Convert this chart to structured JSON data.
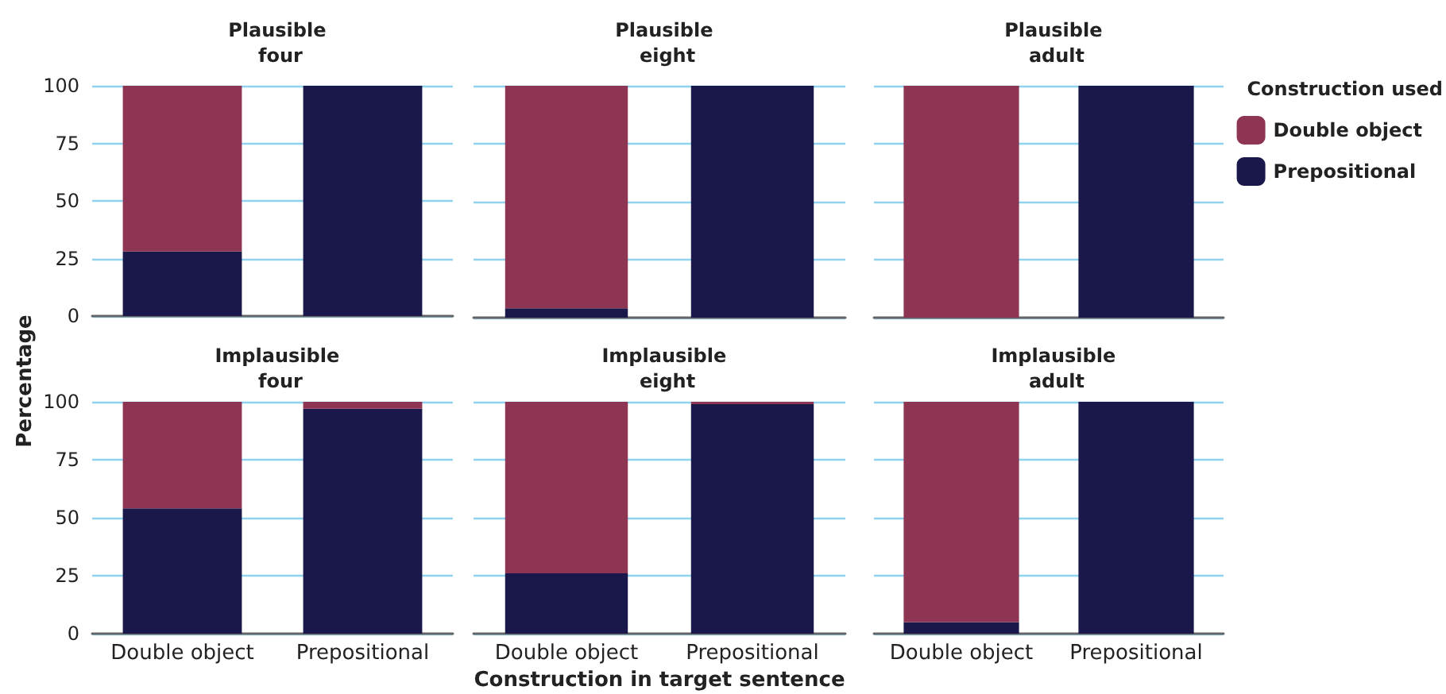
{
  "chart_data": [
    {
      "type": "bar",
      "title": "Plausible four",
      "ylabel": "Percentage",
      "categories": [
        "Double object",
        "Prepositional"
      ],
      "stacked": true,
      "ylim": [
        0,
        100
      ],
      "yticks": [
        0,
        25,
        50,
        75,
        100
      ],
      "grid": "y",
      "tick_labels": "y",
      "series": [
        {
          "color": "#1a174a",
          "values": [
            28,
            100
          ]
        },
        {
          "color": "#8e3553",
          "values": [
            72,
            0
          ]
        }
      ]
    },
    {
      "type": "bar",
      "title": "Plausible eight",
      "categories": [
        "Double object",
        "Prepositional"
      ],
      "stacked": true,
      "ylim": [
        0,
        100
      ],
      "yticks": [
        0,
        25,
        50,
        75,
        100
      ],
      "grid": "y",
      "tick_labels": false,
      "series": [
        {
          "color": "#1a174a",
          "values": [
            4,
            100
          ]
        },
        {
          "color": "#8e3553",
          "values": [
            96,
            0
          ]
        }
      ]
    },
    {
      "type": "bar",
      "title": "Plausible adult",
      "legend_title": "Construction used",
      "legend": "right",
      "categories": [
        "Double object",
        "Prepositional"
      ],
      "stacked": true,
      "ylim": [
        0,
        100
      ],
      "yticks": [
        0,
        25,
        50,
        75,
        100
      ],
      "grid": "y",
      "tick_labels": false,
      "series": [
        {
          "name": "Prepositional",
          "color": "#1a174a",
          "values": [
            0,
            100
          ]
        },
        {
          "name": "Double object",
          "color": "#8e3553",
          "values": [
            100,
            0
          ]
        }
      ]
    },
    {
      "type": "bar",
      "title": "Implausible four",
      "categories": [
        "Double object",
        "Prepositional"
      ],
      "stacked": true,
      "ylim": [
        0,
        100
      ],
      "yticks": [
        0,
        25,
        50,
        75,
        100
      ],
      "grid": "y",
      "series": [
        {
          "color": "#1a174a",
          "values": [
            54,
            97
          ]
        },
        {
          "color": "#8e3553",
          "values": [
            46,
            3
          ]
        }
      ]
    },
    {
      "type": "bar",
      "title": "Implausible eight",
      "xlabel": "Construction in target sentence",
      "categories": [
        "Double object",
        "Prepositional"
      ],
      "stacked": true,
      "ylim": [
        0,
        100
      ],
      "yticks": [
        0,
        25,
        50,
        75,
        100
      ],
      "grid": "y",
      "tick_labels": "x",
      "series": [
        {
          "color": "#1a174a",
          "values": [
            26,
            99
          ]
        },
        {
          "color": "#8e3553",
          "values": [
            74,
            1
          ]
        }
      ]
    },
    {
      "type": "bar",
      "title": "Implausible adult",
      "categories": [
        "Double object",
        "Prepositional"
      ],
      "stacked": true,
      "ylim": [
        0,
        100
      ],
      "yticks": [
        0,
        25,
        50,
        75,
        100
      ],
      "grid": "y",
      "tick_labels": "x",
      "series": [
        {
          "color": "#1a174a",
          "values": [
            5,
            100
          ]
        },
        {
          "color": "#8e3553",
          "values": [
            95,
            0
          ]
        }
      ]
    }
  ]
}
